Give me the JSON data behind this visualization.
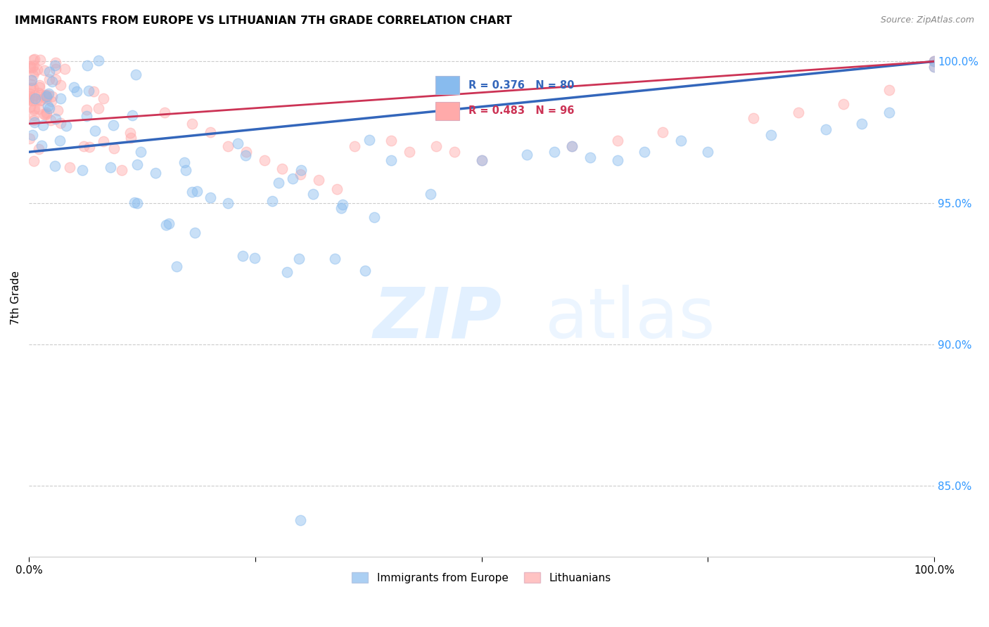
{
  "title": "IMMIGRANTS FROM EUROPE VS LITHUANIAN 7TH GRADE CORRELATION CHART",
  "source": "Source: ZipAtlas.com",
  "ylabel": "7th Grade",
  "ytick_values": [
    1.0,
    0.95,
    0.9,
    0.85
  ],
  "x_min": 0.0,
  "x_max": 1.0,
  "y_min": 0.825,
  "y_max": 1.008,
  "blue_R": 0.376,
  "blue_N": 80,
  "pink_R": 0.483,
  "pink_N": 96,
  "blue_color": "#88BBEE",
  "pink_color": "#FFAAAA",
  "blue_line_color": "#3366BB",
  "pink_line_color": "#CC3355",
  "legend_label_blue": "Immigrants from Europe",
  "legend_label_pink": "Lithuanians",
  "blue_line_x0": 0.0,
  "blue_line_y0": 0.968,
  "blue_line_x1": 1.0,
  "blue_line_y1": 1.0,
  "pink_line_x0": 0.0,
  "pink_line_y0": 0.978,
  "pink_line_x1": 1.0,
  "pink_line_y1": 1.0
}
